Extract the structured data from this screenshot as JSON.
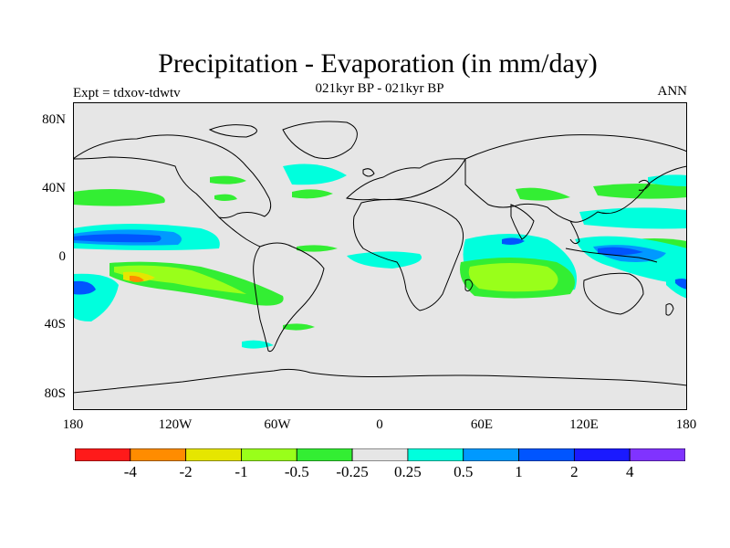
{
  "title": "Precipitation - Evaporation (in mm/day)",
  "subtitle": "021kyr BP - 021kyr BP",
  "left_label": "Expt = tdxov-tdwtv",
  "right_label": "ANN",
  "lat_labels": [
    "80N",
    "40N",
    "0",
    "40S",
    "80S"
  ],
  "lon_labels": [
    "180",
    "120W",
    "60W",
    "0",
    "60E",
    "120E",
    "180"
  ],
  "colorbar": {
    "colors": [
      "#ff1a1a",
      "#ff8c00",
      "#e6e600",
      "#99ff1a",
      "#33ee33",
      "#e6e6e6",
      "#00ffdd",
      "#0099ff",
      "#0055ff",
      "#1a1aff",
      "#8033ff"
    ],
    "labels": [
      "-4",
      "-2",
      "-1",
      "-0.5",
      "-0.25",
      "0.25",
      "0.5",
      "1",
      "2",
      "4"
    ]
  },
  "colors": {
    "land_ocean_background": "#e6e6e6",
    "coastline": "#000000"
  }
}
